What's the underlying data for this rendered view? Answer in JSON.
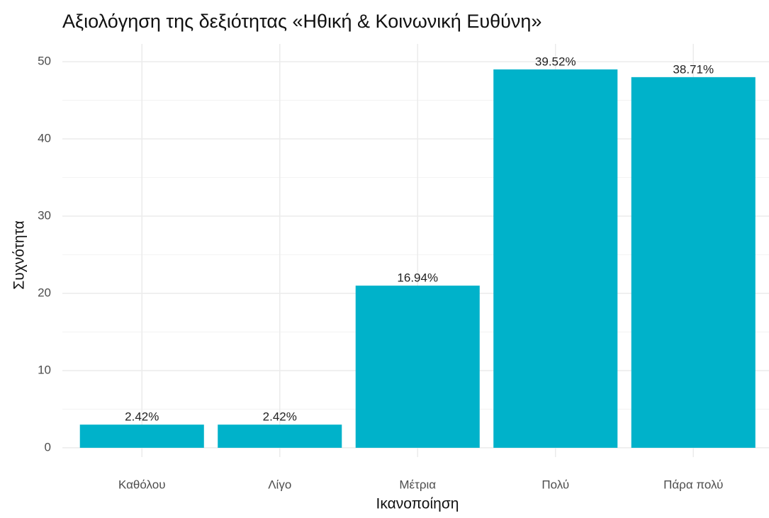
{
  "chart_data": {
    "type": "bar",
    "title": "Αξιολόγηση της δεξιότητας «Ηθική & Κοινωνική Ευθύνη»",
    "x_label": "Ικανοποίηση",
    "y_label": "Συχνότητα",
    "categories": [
      "Καθόλου",
      "Λίγο",
      "Μέτρια",
      "Πολύ",
      "Πάρα πολύ"
    ],
    "values": [
      3,
      3,
      21,
      49,
      48
    ],
    "bar_labels": [
      "2.42%",
      "2.42%",
      "16.94%",
      "39.52%",
      "38.71%"
    ],
    "color": "#00b2ca",
    "ylim": [
      -1.2,
      52.3
    ],
    "yticks": [
      0,
      10,
      20,
      30,
      40,
      50
    ],
    "minor_yticks": [
      5,
      15,
      25,
      35,
      45
    ],
    "grid": true
  }
}
